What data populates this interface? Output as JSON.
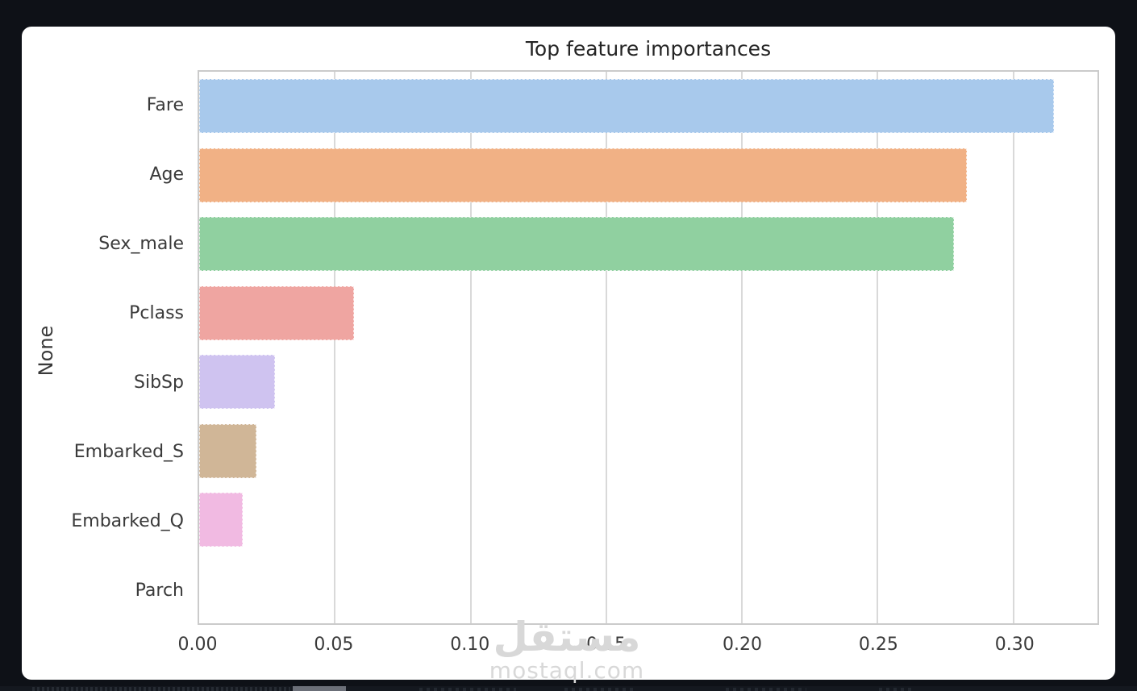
{
  "page": {
    "background_color": "#0e1117",
    "card_color": "#ffffff"
  },
  "chart_data": {
    "type": "bar",
    "orientation": "horizontal",
    "title": "Top feature importances",
    "xlabel": "",
    "ylabel": "None",
    "categories": [
      "Fare",
      "Age",
      "Sex_male",
      "Pclass",
      "SibSp",
      "Embarked_S",
      "Embarked_Q",
      "Parch"
    ],
    "values": [
      0.315,
      0.283,
      0.278,
      0.057,
      0.028,
      0.021,
      0.016,
      0.0
    ],
    "bar_colors": [
      "#a8c9ec",
      "#f1b185",
      "#90d0a0",
      "#efa5a1",
      "#cfc3f0",
      "#d0b697",
      "#f1bae2",
      "#cfcfcf"
    ],
    "xlim": [
      0,
      0.331
    ],
    "xticks": [
      0,
      0.05,
      0.1,
      0.15,
      0.2,
      0.25,
      0.3
    ],
    "xtick_labels": [
      "0.00",
      "0.05",
      "0.10",
      "0.15",
      "0.20",
      "0.25",
      "0.30"
    ],
    "grid": true,
    "grid_color": "#d9d9d9",
    "spine_color": "#cbcbcb",
    "legend": false
  },
  "watermark": {
    "logo_text": "مستقل",
    "domain_text": "mostaql.com",
    "color": "#d8d8d8"
  }
}
